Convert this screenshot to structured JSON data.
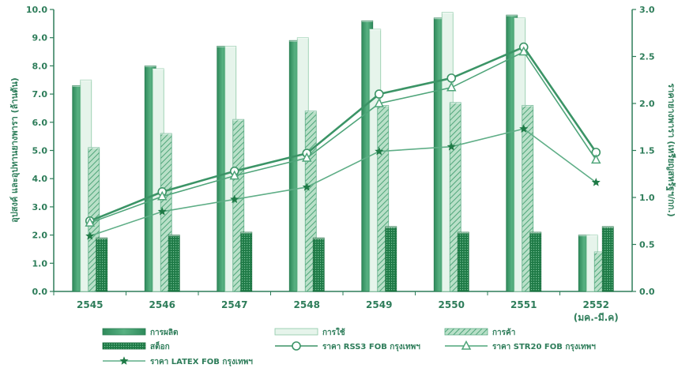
{
  "chart_data": {
    "type": "bar",
    "categories": [
      "2545",
      "2546",
      "2547",
      "2548",
      "2549",
      "2550",
      "2551",
      "2552"
    ],
    "category_sublabels": [
      "",
      "",
      "",
      "",
      "",
      "",
      "",
      "(มค.-มี.ค)"
    ],
    "ylabel_left": "อุปสงค์ และอุปทานยางพารา (ล้านตัน)",
    "ylabel_right": "ราคายางพารา (เหรียญสหรัฐฯ/กก.)",
    "ylim_left": [
      0,
      10
    ],
    "ylim_right": [
      0,
      3
    ],
    "yticks_left": [
      "0.0",
      "1.0",
      "2.0",
      "3.0",
      "4.0",
      "5.0",
      "6.0",
      "7.0",
      "8.0",
      "9.0",
      "10.0"
    ],
    "yticks_right": [
      "0.0",
      "0.5",
      "1.0",
      "1.5",
      "2.0",
      "2.5",
      "3.0"
    ],
    "bar_series": [
      {
        "name": "การผลิต",
        "values": [
          7.3,
          8.0,
          8.7,
          8.9,
          9.6,
          9.7,
          9.8,
          2.0
        ],
        "color": "#3f9b6b",
        "pattern": "solid"
      },
      {
        "name": "การใช้",
        "values": [
          7.5,
          7.9,
          8.7,
          9.0,
          9.3,
          9.9,
          9.7,
          2.0
        ],
        "color": "#e3f3e9",
        "pattern": "light"
      },
      {
        "name": "การค้า",
        "values": [
          5.1,
          5.6,
          6.1,
          6.4,
          6.6,
          6.7,
          6.6,
          1.4
        ],
        "color": "#8cc9a6",
        "pattern": "hatch"
      },
      {
        "name": "สต็อก",
        "values": [
          1.9,
          2.0,
          2.1,
          1.9,
          2.3,
          2.1,
          2.1,
          2.3
        ],
        "color": "#1e7a46",
        "pattern": "dots"
      }
    ],
    "line_series": [
      {
        "name": "ราคา RSS3 FOB กรุงเทพฯ",
        "values": [
          0.75,
          1.06,
          1.28,
          1.47,
          2.1,
          2.27,
          2.6,
          1.48
        ],
        "color": "#3b9466",
        "marker": "circle"
      },
      {
        "name": "ราคา STR20 FOB กรุงเทพฯ",
        "values": [
          0.73,
          1.01,
          1.23,
          1.42,
          2.0,
          2.17,
          2.55,
          1.4
        ],
        "color": "#4fa57a",
        "marker": "triangle"
      },
      {
        "name": "ราคา LATEX FOB กรุงเทพฯ",
        "values": [
          0.59,
          0.85,
          0.98,
          1.11,
          1.49,
          1.54,
          1.73,
          1.16
        ],
        "color": "#5fae87",
        "marker": "star"
      }
    ],
    "grid": false,
    "legend_position": "bottom"
  }
}
